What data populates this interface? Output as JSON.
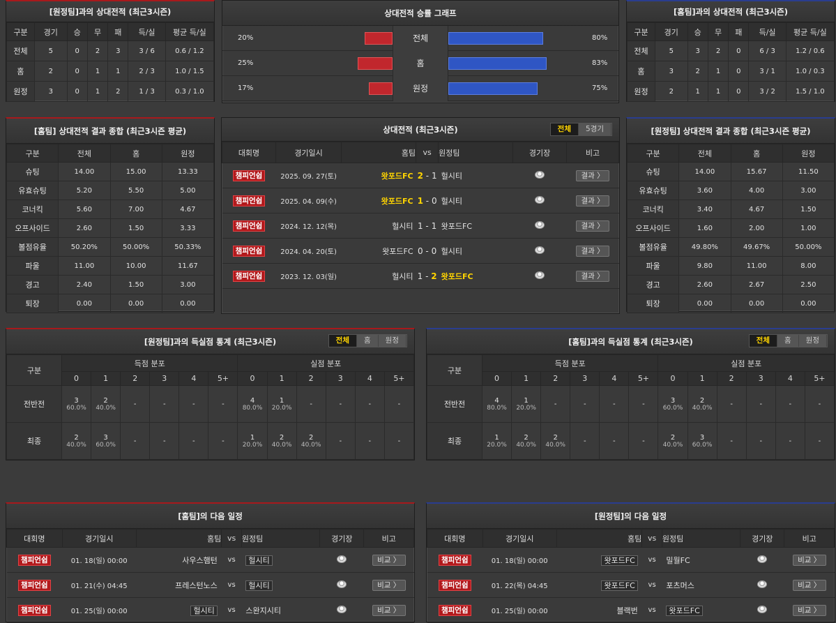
{
  "std_headers": [
    "구분",
    "경기",
    "승",
    "무",
    "패",
    "득/실",
    "평균 득/실"
  ],
  "left_h2h": {
    "title": "[원정팀]과의 상대전적 (최근3시즌)",
    "rows": [
      [
        "전체",
        "5",
        "0",
        "2",
        "3",
        "3 / 6",
        "0.6 / 1.2"
      ],
      [
        "홈",
        "2",
        "0",
        "1",
        "1",
        "2 / 3",
        "1.0 / 1.5"
      ],
      [
        "원정",
        "3",
        "0",
        "1",
        "2",
        "1 / 3",
        "0.3 / 1.0"
      ]
    ]
  },
  "right_h2h": {
    "title": "[홈팀]과의 상대전적 (최근3시즌)",
    "rows": [
      [
        "전체",
        "5",
        "3",
        "2",
        "0",
        "6 / 3",
        "1.2 / 0.6"
      ],
      [
        "홈",
        "3",
        "2",
        "1",
        "0",
        "3 / 1",
        "1.0 / 0.3"
      ],
      [
        "원정",
        "2",
        "1",
        "1",
        "0",
        "3 / 2",
        "1.5 / 1.0"
      ]
    ]
  },
  "win_graph": {
    "title": "상대전적 승률 그래프",
    "rows": [
      {
        "label": "전체",
        "left": "20%",
        "left_val": 20,
        "right": "80%",
        "right_val": 80
      },
      {
        "label": "홈",
        "left": "25%",
        "left_val": 25,
        "right": "83%",
        "right_val": 83
      },
      {
        "label": "원정",
        "left": "17%",
        "left_val": 17,
        "right": "75%",
        "right_val": 75
      }
    ]
  },
  "home_summary": {
    "title": "[홈팀] 상대전적 결과 종합 (최근3시즌 평균)",
    "headers": [
      "구분",
      "전체",
      "홈",
      "원정"
    ],
    "rows": [
      [
        "슈팅",
        "14.00",
        "15.00",
        "13.33"
      ],
      [
        "유효슈팅",
        "5.20",
        "5.50",
        "5.00"
      ],
      [
        "코너킥",
        "5.60",
        "7.00",
        "4.67"
      ],
      [
        "오프사이드",
        "2.60",
        "1.50",
        "3.33"
      ],
      [
        "볼점유율",
        "50.20%",
        "50.00%",
        "50.33%"
      ],
      [
        "파울",
        "11.00",
        "10.00",
        "11.67"
      ],
      [
        "경고",
        "2.40",
        "1.50",
        "3.00"
      ],
      [
        "퇴장",
        "0.00",
        "0.00",
        "0.00"
      ]
    ]
  },
  "away_summary": {
    "title": "[원정팀] 상대전적 결과 종합 (최근3시즌 평균)",
    "headers": [
      "구분",
      "전체",
      "홈",
      "원정"
    ],
    "rows": [
      [
        "슈팅",
        "14.00",
        "15.67",
        "11.50"
      ],
      [
        "유효슈팅",
        "3.60",
        "4.00",
        "3.00"
      ],
      [
        "코너킥",
        "3.40",
        "4.67",
        "1.50"
      ],
      [
        "오프사이드",
        "1.60",
        "2.00",
        "1.00"
      ],
      [
        "볼점유율",
        "49.80%",
        "49.67%",
        "50.00%"
      ],
      [
        "파울",
        "9.80",
        "11.00",
        "8.00"
      ],
      [
        "경고",
        "2.60",
        "2.67",
        "2.50"
      ],
      [
        "퇴장",
        "0.00",
        "0.00",
        "0.00"
      ]
    ]
  },
  "h2h_matches": {
    "title": "상대전적 (최근3시즌)",
    "tabs": [
      "전체",
      "5경기"
    ],
    "headers": [
      "대회명",
      "경기일시",
      "홈팀",
      "vs",
      "원정팀",
      "경기장",
      "비고"
    ],
    "rows": [
      {
        "league": "챔피언쉽",
        "date": "2025. 09. 27(토)",
        "home": "왓포드FC",
        "hs": "2",
        "as": "1",
        "away": "헐시티",
        "winner": "home",
        "btn": "결과 〉"
      },
      {
        "league": "챔피언쉽",
        "date": "2025. 04. 09(수)",
        "home": "왓포드FC",
        "hs": "1",
        "as": "0",
        "away": "헐시티",
        "winner": "home",
        "btn": "결과 〉"
      },
      {
        "league": "챔피언쉽",
        "date": "2024. 12. 12(목)",
        "home": "헐시티",
        "hs": "1",
        "as": "1",
        "away": "왓포드FC",
        "winner": "",
        "btn": "결과 〉"
      },
      {
        "league": "챔피언쉽",
        "date": "2024. 04. 20(토)",
        "home": "왓포드FC",
        "hs": "0",
        "as": "0",
        "away": "헐시티",
        "winner": "",
        "btn": "결과 〉"
      },
      {
        "league": "챔피언쉽",
        "date": "2023. 12. 03(일)",
        "home": "헐시티",
        "hs": "1",
        "as": "2",
        "away": "왓포드FC",
        "winner": "away",
        "btn": "결과 〉"
      }
    ]
  },
  "left_goals": {
    "title": "[원정팀]과의 득실점 통계 (최근3시즌)",
    "tabs": [
      "전체",
      "홈",
      "원정"
    ],
    "group_label": "구분",
    "scored_label": "득점 분포",
    "conceded_label": "실점 분포",
    "cols": [
      "0",
      "1",
      "2",
      "3",
      "4",
      "5+"
    ],
    "rows": [
      {
        "label": "전반전",
        "scored": [
          [
            "3",
            "60.0%"
          ],
          [
            "2",
            "40.0%"
          ],
          [
            "-",
            ""
          ],
          [
            "-",
            ""
          ],
          [
            "-",
            ""
          ],
          [
            "-",
            ""
          ]
        ],
        "conceded": [
          [
            "4",
            "80.0%"
          ],
          [
            "1",
            "20.0%"
          ],
          [
            "-",
            ""
          ],
          [
            "-",
            ""
          ],
          [
            "-",
            ""
          ],
          [
            "-",
            ""
          ]
        ]
      },
      {
        "label": "최종",
        "scored": [
          [
            "2",
            "40.0%"
          ],
          [
            "3",
            "60.0%"
          ],
          [
            "-",
            ""
          ],
          [
            "-",
            ""
          ],
          [
            "-",
            ""
          ],
          [
            "-",
            ""
          ]
        ],
        "conceded": [
          [
            "1",
            "20.0%"
          ],
          [
            "2",
            "40.0%"
          ],
          [
            "2",
            "40.0%"
          ],
          [
            "-",
            ""
          ],
          [
            "-",
            ""
          ],
          [
            "-",
            ""
          ]
        ]
      }
    ]
  },
  "right_goals": {
    "title": "[홈팀]과의 득실점 통계 (최근3시즌)",
    "tabs": [
      "전체",
      "홈",
      "원정"
    ],
    "group_label": "구분",
    "scored_label": "득점 분포",
    "conceded_label": "실점 분포",
    "cols": [
      "0",
      "1",
      "2",
      "3",
      "4",
      "5+"
    ],
    "rows": [
      {
        "label": "전반전",
        "scored": [
          [
            "4",
            "80.0%"
          ],
          [
            "1",
            "20.0%"
          ],
          [
            "-",
            ""
          ],
          [
            "-",
            ""
          ],
          [
            "-",
            ""
          ],
          [
            "-",
            ""
          ]
        ],
        "conceded": [
          [
            "3",
            "60.0%"
          ],
          [
            "2",
            "40.0%"
          ],
          [
            "-",
            ""
          ],
          [
            "-",
            ""
          ],
          [
            "-",
            ""
          ],
          [
            "-",
            ""
          ]
        ]
      },
      {
        "label": "최종",
        "scored": [
          [
            "1",
            "20.0%"
          ],
          [
            "2",
            "40.0%"
          ],
          [
            "2",
            "40.0%"
          ],
          [
            "-",
            ""
          ],
          [
            "-",
            ""
          ],
          [
            "-",
            ""
          ]
        ],
        "conceded": [
          [
            "2",
            "40.0%"
          ],
          [
            "3",
            "60.0%"
          ],
          [
            "-",
            ""
          ],
          [
            "-",
            ""
          ],
          [
            "-",
            ""
          ],
          [
            "-",
            ""
          ]
        ]
      }
    ]
  },
  "home_next": {
    "title": "[홈팀]의 다음 일정",
    "headers": [
      "대회명",
      "경기일시",
      "홈팀",
      "vs",
      "원정팀",
      "경기장",
      "비고"
    ],
    "rows": [
      {
        "league": "챔피언쉽",
        "date": "01. 18(일) 00:00",
        "home": "사우스햄턴",
        "away": "헐시티",
        "boxed": "away",
        "btn": "비교 〉"
      },
      {
        "league": "챔피언쉽",
        "date": "01. 21(수) 04:45",
        "home": "프레스턴노스",
        "away": "헐시티",
        "boxed": "away",
        "btn": "비교 〉"
      },
      {
        "league": "챔피언쉽",
        "date": "01. 25(일) 00:00",
        "home": "헐시티",
        "away": "스완지시티",
        "boxed": "home",
        "btn": "비교 〉"
      }
    ]
  },
  "away_next": {
    "title": "[원정팀]의 다음 일정",
    "headers": [
      "대회명",
      "경기일시",
      "홈팀",
      "vs",
      "원정팀",
      "경기장",
      "비고"
    ],
    "rows": [
      {
        "league": "챔피언쉽",
        "date": "01. 18(일) 00:00",
        "home": "왓포드FC",
        "away": "밀월FC",
        "boxed": "home",
        "btn": "비교 〉"
      },
      {
        "league": "챔피언쉽",
        "date": "01. 22(목) 04:45",
        "home": "왓포드FC",
        "away": "포츠머스",
        "boxed": "home",
        "btn": "비교 〉"
      },
      {
        "league": "챔피언쉽",
        "date": "01. 25(일) 00:00",
        "home": "블랙번",
        "away": "왓포드FC",
        "boxed": "away",
        "btn": "비교 〉"
      }
    ]
  },
  "colors": {
    "accent_red": "#b3191c",
    "accent_blue": "#2f56c4",
    "highlight": "#ffd400"
  }
}
